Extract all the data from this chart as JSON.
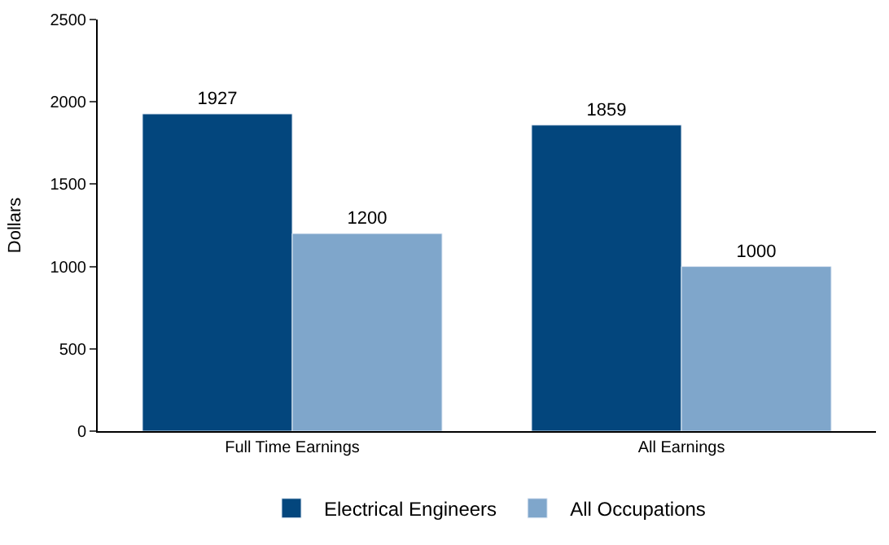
{
  "chart_data": {
    "type": "bar",
    "ylabel": "Dollars",
    "categories": [
      "Full Time Earnings",
      "All Earnings"
    ],
    "series": [
      {
        "name": "Electrical Engineers",
        "color": "#03467d",
        "values": [
          1927,
          1859
        ]
      },
      {
        "name": "All Occupations",
        "color": "#7fa6cb",
        "values": [
          1200,
          1000
        ]
      }
    ],
    "ylim": [
      0,
      2500
    ],
    "yticks": [
      0,
      500,
      1000,
      1500,
      2000,
      2500
    ],
    "grid": false,
    "legend": "bottom",
    "data_labels": true
  }
}
